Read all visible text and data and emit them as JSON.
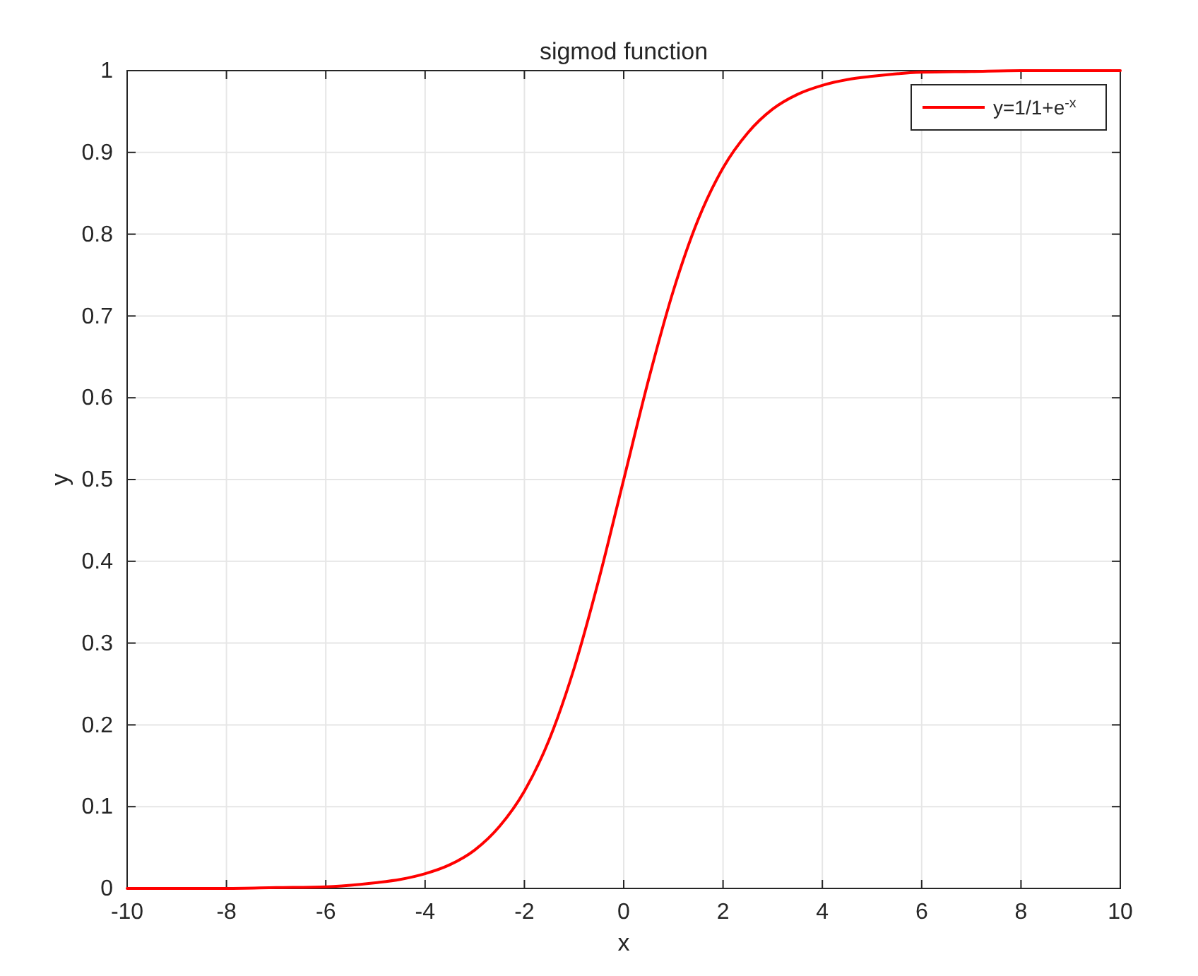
{
  "chart_data": {
    "type": "line",
    "title": "sigmod function",
    "xlabel": "x",
    "ylabel": "y",
    "x": [
      -10,
      -9,
      -8,
      -7,
      -6,
      -5,
      -4.5,
      -4,
      -3.5,
      -3,
      -2.5,
      -2,
      -1.5,
      -1,
      -0.5,
      0,
      0.5,
      1,
      1.5,
      2,
      2.5,
      3,
      3.5,
      4,
      4.5,
      5,
      6,
      7,
      8,
      9,
      10
    ],
    "series": [
      {
        "name": "y=1/1+e$^{-x}$",
        "color": "#ff0000",
        "values": [
          0,
          0,
          0,
          0.001,
          0.002,
          0.007,
          0.011,
          0.018,
          0.029,
          0.047,
          0.076,
          0.119,
          0.182,
          0.269,
          0.378,
          0.5,
          0.622,
          0.731,
          0.818,
          0.881,
          0.924,
          0.953,
          0.971,
          0.982,
          0.989,
          0.993,
          0.998,
          0.999,
          1,
          1,
          1
        ]
      }
    ],
    "xlim": [
      -10,
      10
    ],
    "ylim": [
      0,
      1
    ],
    "xticks": [
      -10,
      -8,
      -6,
      -4,
      -2,
      0,
      2,
      4,
      6,
      8,
      10
    ],
    "yticks": [
      0,
      0.1,
      0.2,
      0.3,
      0.4,
      0.5,
      0.6,
      0.7,
      0.8,
      0.9,
      1
    ],
    "grid": true,
    "legend": "top right",
    "line_style": "solid",
    "marker": "none"
  }
}
